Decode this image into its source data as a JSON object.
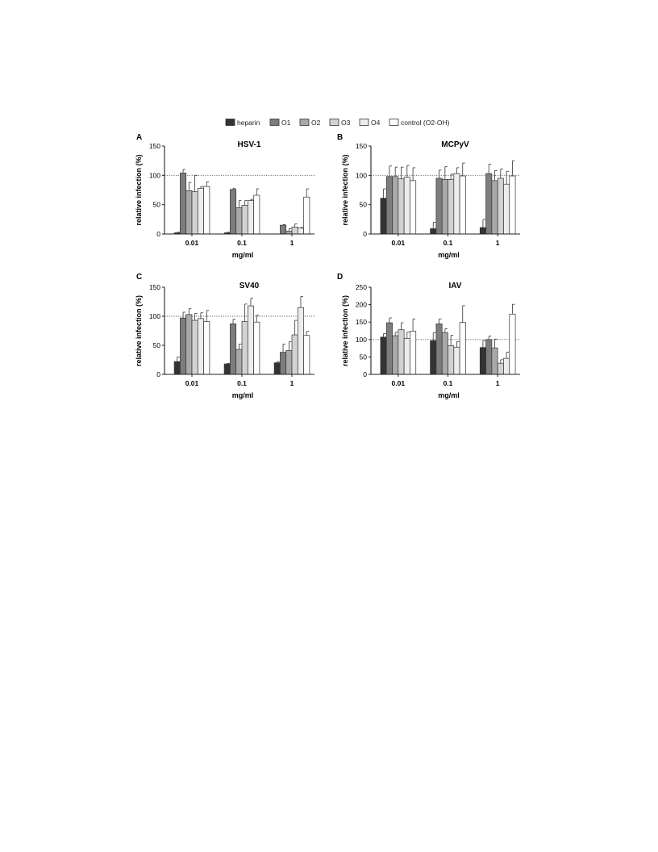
{
  "legend": {
    "items": [
      {
        "label": "heparin",
        "color": "#333333"
      },
      {
        "label": "O1",
        "color": "#7d7d7d"
      },
      {
        "label": "O2",
        "color": "#a9a9a9"
      },
      {
        "label": "O3",
        "color": "#d2d2d2"
      },
      {
        "label": "O4",
        "color": "#ededed"
      },
      {
        "label": "control (O2-OH)",
        "color": "#ffffff"
      }
    ]
  },
  "chart_data": [
    {
      "panel": "A",
      "type": "bar",
      "title": "HSV-1",
      "xlabel": "mg/ml",
      "ylabel": "relative infection (%)",
      "categories": [
        "0.01",
        "0.1",
        "1"
      ],
      "ylim": [
        0,
        150
      ],
      "yticks": [
        0,
        50,
        100,
        150
      ],
      "reference_line": 100,
      "series": [
        {
          "name": "heparin",
          "values": [
            2,
            2,
            0
          ],
          "errors": [
            1,
            1,
            0
          ]
        },
        {
          "name": "O1",
          "values": [
            104,
            76,
            15
          ],
          "errors": [
            6,
            2,
            1
          ]
        },
        {
          "name": "O2",
          "values": [
            74,
            45,
            5
          ],
          "errors": [
            14,
            12,
            4
          ]
        },
        {
          "name": "O3",
          "values": [
            72,
            49,
            12
          ],
          "errors": [
            28,
            8,
            5
          ]
        },
        {
          "name": "O4",
          "values": [
            78,
            57,
            10
          ],
          "errors": [
            3,
            2,
            1
          ]
        },
        {
          "name": "control (O2-OH)",
          "values": [
            81,
            66,
            63
          ],
          "errors": [
            8,
            11,
            14
          ]
        }
      ]
    },
    {
      "panel": "B",
      "type": "bar",
      "title": "MCPyV",
      "xlabel": "mg/ml",
      "ylabel": "relative infection (%)",
      "categories": [
        "0.01",
        "0.1",
        "1"
      ],
      "ylim": [
        0,
        150
      ],
      "yticks": [
        0,
        50,
        100,
        150
      ],
      "reference_line": 100,
      "series": [
        {
          "name": "heparin",
          "values": [
            61,
            9,
            11
          ],
          "errors": [
            16,
            11,
            14
          ]
        },
        {
          "name": "O1",
          "values": [
            98,
            95,
            103
          ],
          "errors": [
            18,
            14,
            16
          ]
        },
        {
          "name": "O2",
          "values": [
            98,
            93,
            91
          ],
          "errors": [
            16,
            22,
            17
          ]
        },
        {
          "name": "O3",
          "values": [
            94,
            93,
            95
          ],
          "errors": [
            20,
            9,
            16
          ]
        },
        {
          "name": "O4",
          "values": [
            97,
            103,
            85
          ],
          "errors": [
            20,
            10,
            22
          ]
        },
        {
          "name": "control (O2-OH)",
          "values": [
            91,
            99,
            99
          ],
          "errors": [
            22,
            22,
            26
          ]
        }
      ]
    },
    {
      "panel": "C",
      "type": "bar",
      "title": "SV40",
      "xlabel": "mg/ml",
      "ylabel": "relative infection (%)",
      "categories": [
        "0.01",
        "0.1",
        "1"
      ],
      "ylim": [
        0,
        150
      ],
      "yticks": [
        0,
        50,
        100,
        150
      ],
      "reference_line": 100,
      "series": [
        {
          "name": "heparin",
          "values": [
            22,
            18,
            20
          ],
          "errors": [
            8,
            1,
            2
          ]
        },
        {
          "name": "O1",
          "values": [
            97,
            87,
            38
          ],
          "errors": [
            10,
            8,
            14
          ]
        },
        {
          "name": "O2",
          "values": [
            103,
            43,
            41
          ],
          "errors": [
            10,
            9,
            15
          ]
        },
        {
          "name": "O3",
          "values": [
            93,
            91,
            68
          ],
          "errors": [
            12,
            30,
            25
          ]
        },
        {
          "name": "O4",
          "values": [
            96,
            118,
            115
          ],
          "errors": [
            10,
            13,
            19
          ]
        },
        {
          "name": "control (O2-OH)",
          "values": [
            91,
            90,
            67
          ],
          "errors": [
            19,
            12,
            7
          ]
        }
      ]
    },
    {
      "panel": "D",
      "type": "bar",
      "title": "IAV",
      "xlabel": "mg/ml",
      "ylabel": "relative infection (%)",
      "categories": [
        "0.01",
        "0.1",
        "1"
      ],
      "ylim": [
        0,
        250
      ],
      "yticks": [
        0,
        50,
        100,
        150,
        200,
        250
      ],
      "reference_line": 100,
      "series": [
        {
          "name": "heparin",
          "values": [
            107,
            97,
            77
          ],
          "errors": [
            10,
            22,
            20
          ]
        },
        {
          "name": "O1",
          "values": [
            148,
            145,
            100
          ],
          "errors": [
            14,
            14,
            10
          ]
        },
        {
          "name": "O2",
          "values": [
            111,
            120,
            76
          ],
          "errors": [
            10,
            11,
            25
          ]
        },
        {
          "name": "O3",
          "values": [
            128,
            82,
            32
          ],
          "errors": [
            20,
            30,
            10
          ]
        },
        {
          "name": "O4",
          "values": [
            103,
            78,
            46
          ],
          "errors": [
            18,
            16,
            18
          ]
        },
        {
          "name": "control (O2-OH)",
          "values": [
            124,
            149,
            173
          ],
          "errors": [
            35,
            48,
            28
          ]
        }
      ]
    }
  ]
}
